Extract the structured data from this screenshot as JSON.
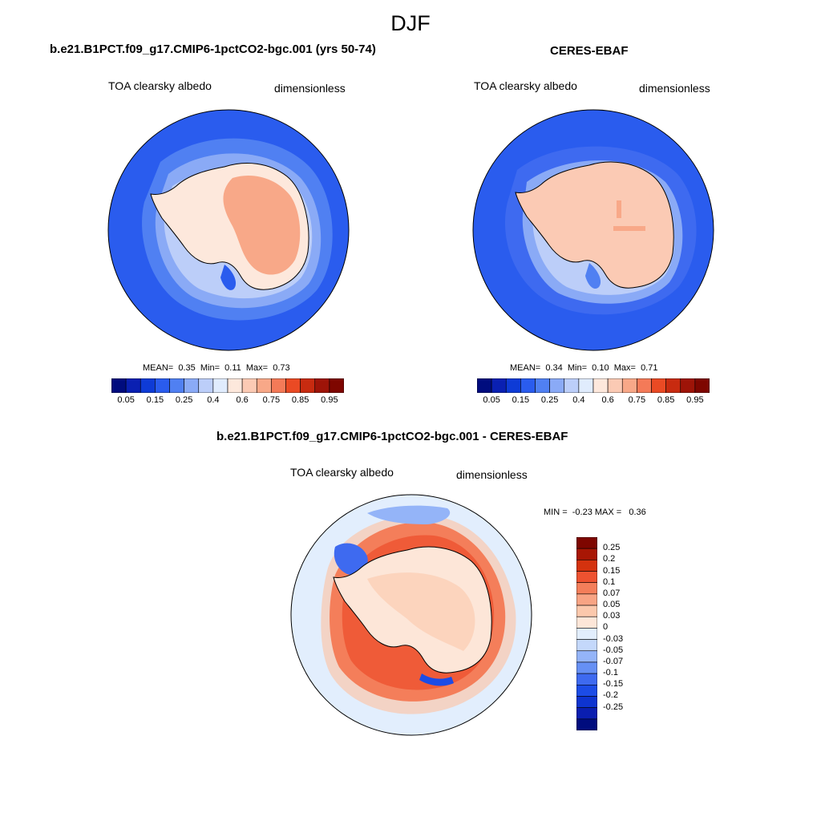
{
  "title": "DJF",
  "colors": {
    "abs_scale": [
      "#000c7e",
      "#0a20b2",
      "#0e3bd6",
      "#2a5cee",
      "#5080f2",
      "#8aaaf6",
      "#bccef9",
      "#e0ecfd",
      "#fde8dc",
      "#fbcab4",
      "#f8a888",
      "#f47a58",
      "#ea4a24",
      "#c82b10",
      "#9e1408",
      "#7e0600"
    ],
    "diff_scale": [
      "#000c7e",
      "#0a1eb0",
      "#0e34d0",
      "#1c4ce6",
      "#3e6af0",
      "#6690f4",
      "#94b4f8",
      "#c4d8fb",
      "#e2eefd",
      "#fde6d8",
      "#fbc8ac",
      "#f8a484",
      "#f47e5a",
      "#ee5230",
      "#d4320e",
      "#a81604",
      "#7e0600"
    ]
  },
  "panels": [
    {
      "title": "b.e21.B1PCT.f09_g17.CMIP6-1pctCO2-bgc.001 (yrs 50-74)",
      "variable": "TOA clearsky albedo",
      "units": "dimensionless",
      "mean": "0.35",
      "min": "0.11",
      "max": "0.73",
      "mean_label": "MEAN=",
      "min_label": "Min=",
      "max_label": "Max="
    },
    {
      "title": "CERES-EBAF",
      "variable": "TOA clearsky albedo",
      "units": "dimensionless",
      "mean": "0.34",
      "min": "0.10",
      "max": "0.71",
      "mean_label": "MEAN=",
      "min_label": "Min=",
      "max_label": "Max="
    },
    {
      "title": "b.e21.B1PCT.f09_g17.CMIP6-1pctCO2-bgc.001 - CERES-EBAF",
      "variable": "TOA clearsky albedo",
      "units": "dimensionless",
      "minmax_text": "MIN =  -0.23 MAX =   0.36"
    }
  ],
  "abs_colorbar_ticks": [
    "0.05",
    "0.15",
    "0.25",
    "0.4",
    "0.6",
    "0.75",
    "0.85",
    "0.95"
  ],
  "abs_colorbar_levels": [
    0.05,
    0.1,
    0.15,
    0.2,
    0.25,
    0.3,
    0.4,
    0.5,
    0.6,
    0.65,
    0.7,
    0.75,
    0.8,
    0.85,
    0.9,
    0.95
  ],
  "diff_colorbar_ticks": [
    "0.25",
    "0.2",
    "0.15",
    "0.1",
    "0.07",
    "0.05",
    "0.03",
    "0",
    "-0.03",
    "-0.05",
    "-0.07",
    "-0.1",
    "-0.15",
    "-0.2",
    "-0.25"
  ]
}
